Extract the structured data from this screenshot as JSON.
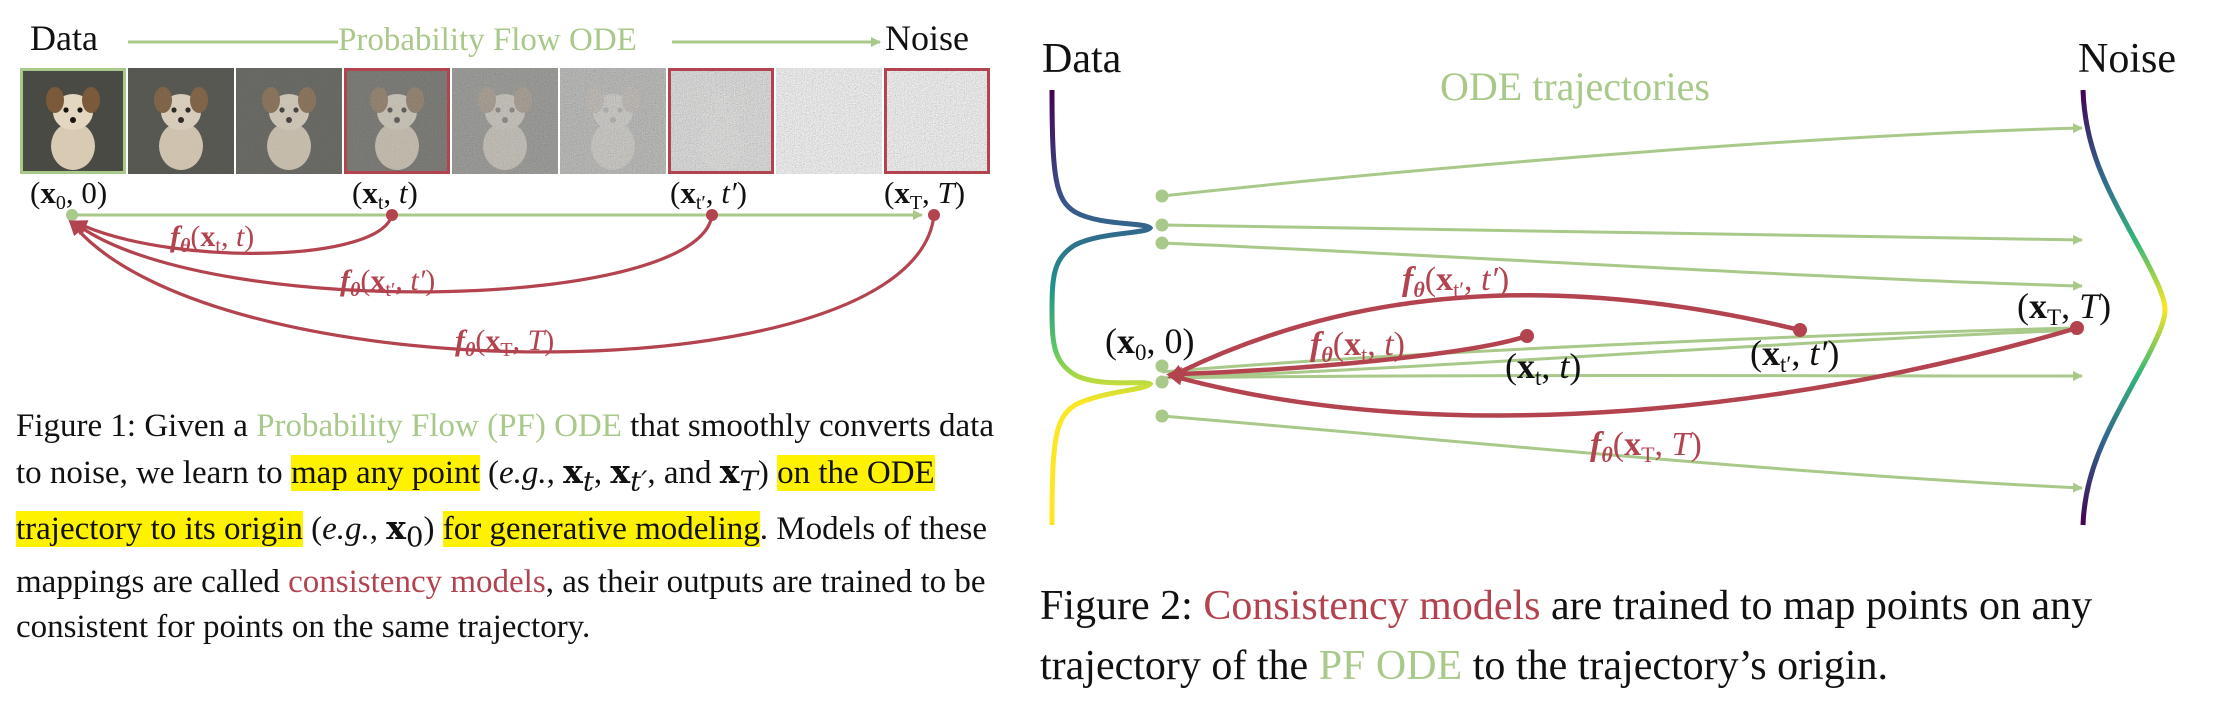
{
  "figure1": {
    "label_data": "Data",
    "label_flow": "Probability Flow ODE",
    "label_noise": "Noise",
    "points": [
      "(x0, 0)",
      "(xt, t)",
      "(xt', t')",
      "(xT, T)"
    ],
    "mappings": [
      "fθ(xt, t)",
      "fθ(xt', t')",
      "fθ(xT, T)"
    ],
    "frames": [
      {
        "noise": 0.0,
        "highlight": "green"
      },
      {
        "noise": 0.08,
        "highlight": "none"
      },
      {
        "noise": 0.18,
        "highlight": "none"
      },
      {
        "noise": 0.28,
        "highlight": "red"
      },
      {
        "noise": 0.45,
        "highlight": "none"
      },
      {
        "noise": 0.62,
        "highlight": "none"
      },
      {
        "noise": 0.8,
        "highlight": "red"
      },
      {
        "noise": 0.92,
        "highlight": "none"
      },
      {
        "noise": 1.0,
        "highlight": "red"
      }
    ]
  },
  "caption1": {
    "prefix": "Figure 1: Given a ",
    "pf_ode": "Probability Flow (PF) ODE",
    "t1": " that smoothly converts data to noise, we learn to ",
    "hl1": "map any point",
    "t2a": " (",
    "eg": "e.g.",
    "t2b": ", ",
    "xt": "x",
    "xt_sub": "t",
    "comma": ",",
    "xtp": "x",
    "xtp_sub": "t′",
    "and": ", and ",
    "xT": "x",
    "xT_sub": "T",
    "t3": ") ",
    "hl2": "on the ODE trajectory to its origin",
    "t4a": " (",
    "eg2": "e.g.",
    "t4b": ", ",
    "x0": "x",
    "x0_sub": "0",
    "t4c": ") ",
    "hl3": "for generative modeling",
    "t5": ". Models of these mappings are called ",
    "cm": "consistency models",
    "t6": ", as their outputs are trained to be consistent for points on the same trajectory."
  },
  "figure2": {
    "label_data": "Data",
    "label_noise": "Noise",
    "label_trajectories": "ODE trajectories",
    "points": [
      "(x0, 0)",
      "(xt, t)",
      "(xt', t')",
      "(xT, T)"
    ],
    "mappings": [
      "fθ(xt, t)",
      "fθ(xt', t')",
      "fθ(xT, T)"
    ]
  },
  "caption2": {
    "prefix": "Figure 2: ",
    "cm": "Consistency models",
    "t1": " are trained to map points on any trajectory of the ",
    "pf": "PF ODE",
    "t2": " to the trajectory’s origin."
  }
}
